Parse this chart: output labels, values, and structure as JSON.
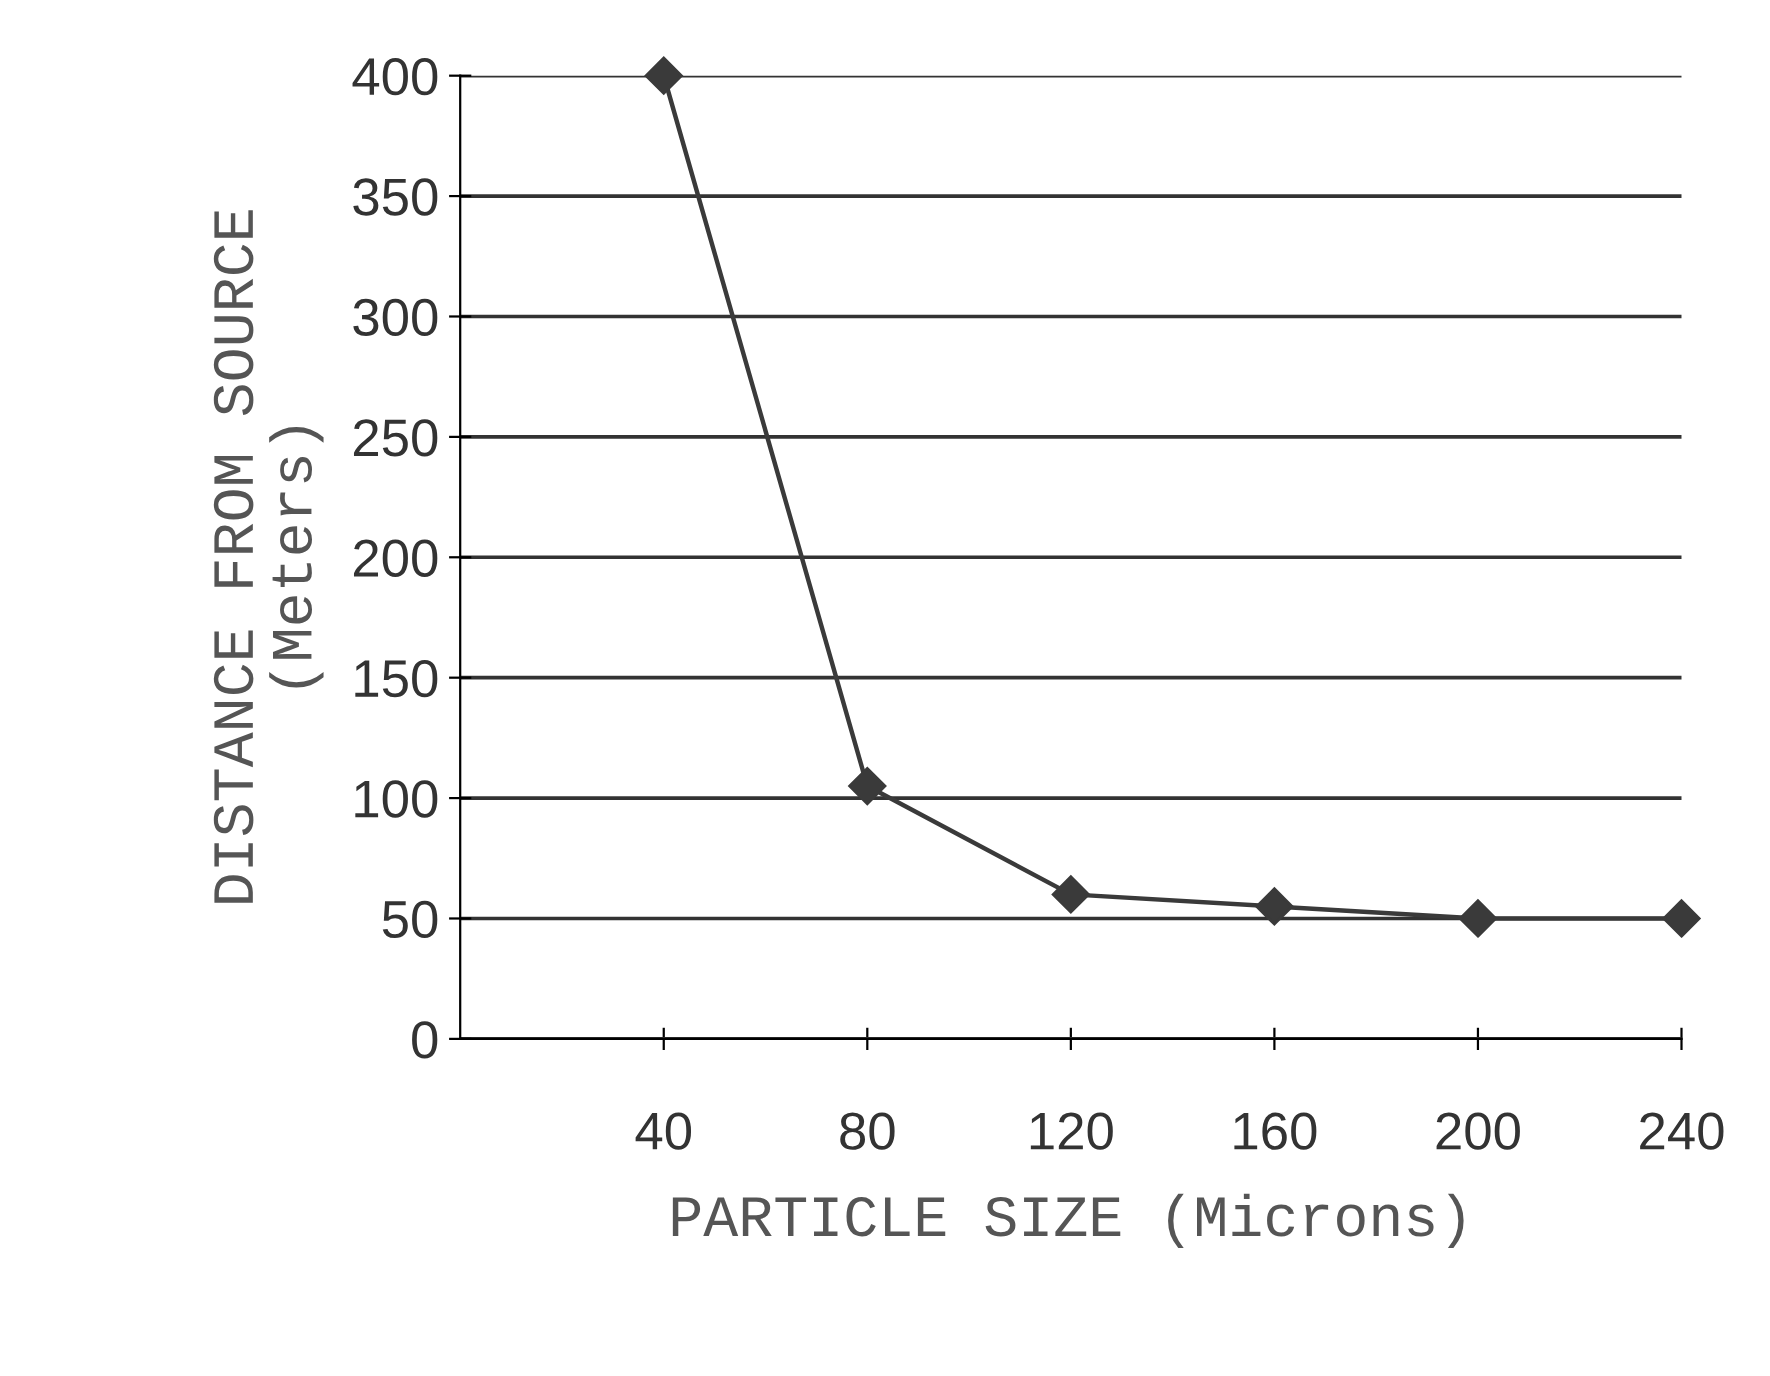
{
  "chart_data": {
    "type": "line",
    "xlabel": "PARTICLE SIZE (Microns)",
    "ylabel": "DISTANCE FROM SOURCE\n(Meters)",
    "x": [
      40,
      80,
      120,
      160,
      200,
      240
    ],
    "series": [
      {
        "color": "#3a3a3a",
        "values": [
          400,
          105,
          60,
          55,
          50,
          50
        ]
      }
    ],
    "xlim": [
      0,
      240
    ],
    "xticks": [
      40,
      80,
      120,
      160,
      200,
      240
    ],
    "ylim": [
      0,
      400
    ],
    "yticks": [
      0,
      50,
      100,
      150,
      200,
      250,
      300,
      350,
      400
    ],
    "grid": "y",
    "marker": "diamond",
    "line_style": "solid",
    "legend": false
  }
}
